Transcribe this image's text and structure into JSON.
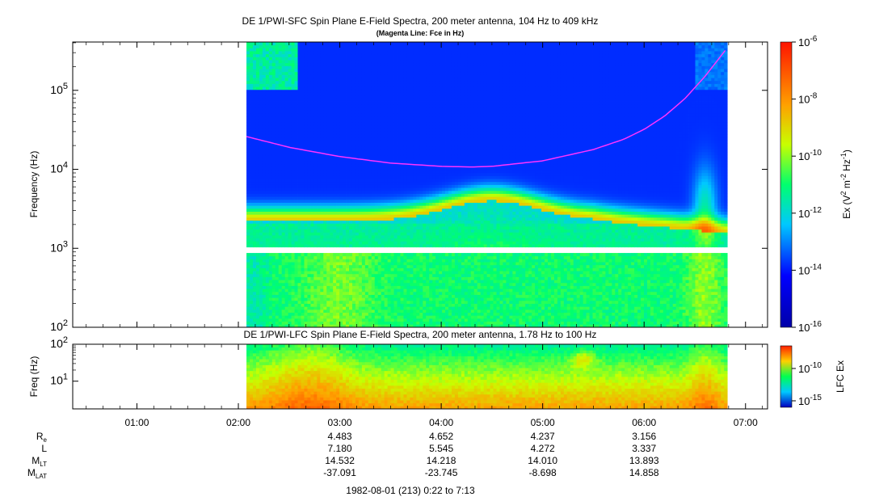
{
  "chart_data": [
    {
      "type": "heatmap",
      "title": "DE 1/PWI-SFC  Spin Plane E-Field Spectra, 200 meter antenna, 104 Hz to 409 kHz",
      "subtitle": "(Magenta Line: Fce in Hz)",
      "ylabel": "Frequency (Hz)",
      "yscale": "log",
      "ylim": [
        100,
        409000
      ],
      "ytick_labels": [
        "10^2",
        "10^3",
        "10^4",
        "10^5"
      ],
      "colorbar": {
        "label": "Ex (V^2 m^-2 Hz^-1)",
        "scale": "log",
        "range": [
          1e-16,
          1e-06
        ],
        "tick_labels": [
          "10^-6",
          "10^-8",
          "10^-10",
          "10^-12",
          "10^-14",
          "10^-16"
        ]
      },
      "data_coverage_hours": [
        2.08,
        6.82
      ],
      "series": [
        {
          "name": "Fce",
          "color": "#ff33ff",
          "x_hours": [
            2.08,
            2.5,
            3.0,
            3.5,
            4.0,
            4.3,
            4.5,
            5.0,
            5.5,
            5.8,
            6.0,
            6.2,
            6.4,
            6.6,
            6.8
          ],
          "y_hz": [
            26000,
            19000,
            14500,
            12000,
            10900,
            10700,
            10900,
            12800,
            17800,
            24000,
            32000,
            47000,
            78000,
            150000,
            320000
          ]
        }
      ]
    },
    {
      "type": "heatmap",
      "title": "DE 1/PWI-LFC  Spin Plane E-Field Spectra, 200 meter antenna, 1.78 Hz to 100 Hz",
      "ylabel": "Freq (Hz)",
      "yscale": "log",
      "ylim": [
        1.78,
        100
      ],
      "ytick_labels": [
        "10^1",
        "10^2"
      ],
      "colorbar": {
        "label": "LFC Ex",
        "scale": "log",
        "tick_labels": [
          "10^-10",
          "10^-15"
        ]
      },
      "data_coverage_hours": [
        2.08,
        6.82
      ]
    }
  ],
  "time_axis": {
    "range_hours": [
      0.367,
      7.217
    ],
    "tick_labels": [
      "01:00",
      "02:00",
      "03:00",
      "04:00",
      "05:00",
      "06:00",
      "07:00"
    ]
  },
  "ephemeris": {
    "rows": [
      {
        "label": "R",
        "sub": "e",
        "values": [
          "4.483",
          "4.652",
          "4.237",
          "3.156"
        ]
      },
      {
        "label": "L",
        "sub": "",
        "values": [
          "7.180",
          "5.545",
          "4.272",
          "3.337"
        ]
      },
      {
        "label": "M",
        "sub": "LT",
        "values": [
          "14.532",
          "14.218",
          "14.010",
          "13.893"
        ]
      },
      {
        "label": "M",
        "sub": "LAT",
        "values": [
          "-37.091",
          "-23.745",
          "-8.698",
          "14.858"
        ]
      }
    ]
  },
  "footer": "1982-08-01 (213) 0:22 to 7:13"
}
